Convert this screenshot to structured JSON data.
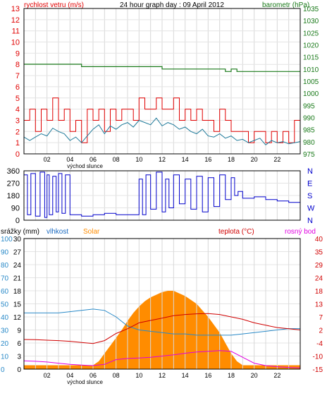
{
  "header": {
    "left_label": "rychlost vetru (m/s)",
    "title": "24 hour graph day : 09 April 2012",
    "right_label": "barometr (hPa)"
  },
  "colors": {
    "wind": "#e00000",
    "gust_avg": "#1f7a9a",
    "pressure": "#1a7a1a",
    "direction": "#0000cc",
    "solar": "#ff8c00",
    "humidity": "#2a8ac8",
    "temperature": "#d00000",
    "dewpoint": "#e000e0",
    "rain_axis": "#1a6ac0"
  },
  "chart_data": [
    {
      "type": "line",
      "name": "wind-and-pressure",
      "x_ticks": [
        "02",
        "04",
        "06",
        "08",
        "10",
        "12",
        "14",
        "16",
        "18",
        "20",
        "22"
      ],
      "x_annotation": "východ slunce",
      "ylim": [
        0,
        13
      ],
      "y_ticks": [
        0,
        1,
        2,
        3,
        4,
        5,
        6,
        7,
        8,
        9,
        10,
        11,
        12,
        13
      ],
      "y2lim": [
        975,
        1035
      ],
      "y2_ticks": [
        975,
        980,
        985,
        990,
        995,
        1000,
        1005,
        1010,
        1015,
        1020,
        1025,
        1030,
        1035
      ],
      "series": [
        {
          "key": "wind",
          "axis": "left",
          "x": [
            0,
            0.5,
            1,
            1.5,
            2,
            2.5,
            3,
            3.5,
            4,
            4.5,
            5,
            5.5,
            6,
            6.5,
            7,
            7.5,
            8,
            8.5,
            9,
            9.5,
            10,
            10.5,
            11,
            11.5,
            12,
            12.5,
            13,
            13.5,
            14,
            14.5,
            15,
            15.5,
            16,
            16.5,
            17,
            17.5,
            18,
            18.5,
            19,
            19.5,
            20,
            20.5,
            21,
            21.5,
            22,
            22.5,
            23,
            23.5,
            24
          ],
          "values": [
            3,
            4,
            2,
            4,
            3,
            5,
            3,
            4,
            2,
            3,
            1,
            4,
            3,
            4,
            2,
            4,
            3,
            4,
            4,
            3,
            5,
            4,
            4,
            5,
            4,
            4,
            5,
            3,
            4,
            3,
            4,
            3,
            3,
            2,
            4,
            3,
            2,
            2,
            2,
            1,
            2,
            2,
            1,
            2,
            1,
            2,
            1,
            3,
            2
          ]
        },
        {
          "key": "gust_avg",
          "axis": "left",
          "x": [
            0,
            0.5,
            1,
            1.5,
            2,
            2.5,
            3,
            3.5,
            4,
            4.5,
            5,
            5.5,
            6,
            6.5,
            7,
            7.5,
            8,
            8.5,
            9,
            9.5,
            10,
            10.5,
            11,
            11.5,
            12,
            12.5,
            13,
            13.5,
            14,
            14.5,
            15,
            15.5,
            16,
            16.5,
            17,
            17.5,
            18,
            18.5,
            19,
            19.5,
            20,
            20.5,
            21,
            21.5,
            22,
            22.5,
            23,
            23.5,
            24
          ],
          "values": [
            1.5,
            1.2,
            1.5,
            1.8,
            1.6,
            2.3,
            2.0,
            1.8,
            1.2,
            1.5,
            1.0,
            1.6,
            2.2,
            2.6,
            1.8,
            2.5,
            2.2,
            2.6,
            2.8,
            2.4,
            3.0,
            2.8,
            2.6,
            3.2,
            2.5,
            2.8,
            2.6,
            2.2,
            2.4,
            2.0,
            1.8,
            2.2,
            1.6,
            1.5,
            1.8,
            1.4,
            1.6,
            1.2,
            1.3,
            1.0,
            1.2,
            1.4,
            0.8,
            1.2,
            1.0,
            1.1,
            0.9,
            1.0,
            1.1
          ]
        },
        {
          "key": "pressure",
          "axis": "right",
          "x": [
            0,
            1,
            2,
            3,
            4,
            5,
            6,
            7,
            8,
            9,
            10,
            11,
            12,
            13,
            14,
            15,
            16,
            17,
            17.5,
            18,
            18.5,
            19,
            20,
            21,
            22,
            23,
            24
          ],
          "values": [
            1012,
            1012,
            1012,
            1012,
            1012,
            1011,
            1011,
            1011,
            1011,
            1011,
            1011,
            1011,
            1010,
            1010,
            1010,
            1010,
            1010,
            1010,
            1009,
            1010,
            1009,
            1009,
            1009,
            1009,
            1009,
            1009,
            1009
          ]
        }
      ]
    },
    {
      "type": "line",
      "name": "wind-direction",
      "x_ticks": [
        "02",
        "04",
        "06",
        "08",
        "10",
        "12",
        "14",
        "16",
        "18",
        "20",
        "22"
      ],
      "ylim": [
        0,
        360
      ],
      "y_ticks": [
        0,
        90,
        180,
        270,
        360
      ],
      "y_tick_labels": [
        "0",
        "90",
        "180",
        "270",
        "360"
      ],
      "right_labels": [
        "N",
        "W",
        "S",
        "E",
        "N"
      ],
      "series": [
        {
          "key": "direction",
          "x": [
            0,
            0.3,
            0.6,
            1.0,
            1.4,
            1.8,
            2.0,
            2.2,
            2.5,
            2.8,
            3.0,
            3.3,
            3.6,
            4.0,
            4.5,
            5.0,
            6.0,
            7.0,
            8.0,
            9.0,
            10.0,
            10.3,
            10.6,
            11.0,
            11.5,
            12.0,
            12.3,
            12.6,
            13.0,
            13.5,
            14.0,
            14.5,
            15.0,
            15.5,
            16.0,
            16.5,
            17.0,
            17.5,
            18.0,
            18.3,
            18.6,
            19.0,
            20.0,
            21.0,
            22.0,
            23.0,
            24.0
          ],
          "values": [
            330,
            40,
            340,
            30,
            350,
            20,
            330,
            40,
            320,
            60,
            340,
            50,
            330,
            40,
            40,
            30,
            40,
            50,
            40,
            40,
            300,
            40,
            330,
            80,
            350,
            60,
            300,
            90,
            330,
            120,
            300,
            80,
            320,
            60,
            310,
            100,
            330,
            150,
            310,
            180,
            210,
            160,
            170,
            150,
            140,
            130,
            120
          ]
        }
      ]
    },
    {
      "type": "area",
      "name": "weather-multi",
      "x_ticks": [
        "02",
        "04",
        "06",
        "08",
        "10",
        "12",
        "14",
        "16",
        "18",
        "20",
        "22"
      ],
      "x_annotation": "východ slunce",
      "legend": {
        "rain": "srážky (mm)",
        "humidity": "vlhkost",
        "solar": "Solar",
        "temperature": "teplota (°C)",
        "dewpoint": "rosný bod"
      },
      "rain_axis": {
        "ylim": [
          0,
          30
        ],
        "ticks": [
          0,
          3,
          6,
          9,
          12,
          15,
          18,
          21,
          24,
          27,
          30
        ]
      },
      "humidity_axis": {
        "ylim": [
          0,
          100
        ],
        "ticks": [
          0,
          10,
          20,
          30,
          40,
          50,
          60,
          70,
          80,
          90,
          100
        ]
      },
      "temp_axis": {
        "ylim": [
          -15,
          40
        ],
        "ticks": [
          -15,
          -10,
          -4,
          2,
          7,
          13,
          18,
          24,
          29,
          35,
          40
        ]
      },
      "series": [
        {
          "key": "solar",
          "axis": "humidity",
          "x": [
            0,
            1,
            2,
            3,
            4,
            5,
            6,
            6.5,
            7,
            7.5,
            8,
            8.5,
            9,
            9.5,
            10,
            10.5,
            11,
            11.5,
            12,
            12.5,
            13,
            13.5,
            14,
            14.5,
            15,
            15.5,
            16,
            16.5,
            17,
            17.5,
            18,
            18.5,
            19,
            20,
            21,
            22,
            23,
            24
          ],
          "values": [
            3,
            3,
            3,
            3,
            3,
            3,
            3,
            6,
            12,
            18,
            24,
            30,
            37,
            43,
            48,
            52,
            55,
            57,
            59,
            60,
            60,
            58,
            56,
            53,
            50,
            45,
            40,
            34,
            28,
            20,
            12,
            6,
            3,
            3,
            3,
            3,
            3,
            3
          ]
        },
        {
          "key": "humidity",
          "axis": "humidity",
          "x": [
            0,
            1,
            2,
            3,
            4,
            5,
            6,
            7,
            8,
            9,
            10,
            11,
            12,
            13,
            14,
            15,
            16,
            17,
            18,
            19,
            20,
            21,
            22,
            23,
            24
          ],
          "values": [
            43,
            43,
            43,
            43,
            44,
            45,
            46,
            45,
            40,
            33,
            30,
            29,
            28,
            27,
            27,
            26,
            26,
            26,
            26,
            27,
            28,
            29,
            30,
            31,
            31
          ]
        },
        {
          "key": "temperature",
          "axis": "temp",
          "x": [
            0,
            1,
            2,
            3,
            4,
            5,
            6,
            7,
            8,
            9,
            10,
            11,
            12,
            13,
            14,
            15,
            16,
            17,
            18,
            19,
            20,
            21,
            22,
            23,
            24
          ],
          "values": [
            -2.5,
            -2.6,
            -2.8,
            -3.0,
            -3.3,
            -3.8,
            -4.2,
            -3.0,
            0.0,
            2.0,
            4.5,
            5.5,
            6.5,
            7.5,
            8.0,
            8.3,
            8.4,
            8.0,
            7.0,
            6.0,
            4.5,
            3.5,
            2.5,
            2.0,
            1.5
          ]
        },
        {
          "key": "dewpoint",
          "axis": "temp",
          "x": [
            0,
            1,
            2,
            3,
            4,
            5,
            6,
            7,
            8,
            9,
            10,
            11,
            12,
            13,
            14,
            15,
            16,
            17,
            18,
            19,
            20,
            21,
            22,
            23,
            24
          ],
          "values": [
            -11.5,
            -11.7,
            -12.0,
            -12.5,
            -13.0,
            -13.3,
            -13.5,
            -13.0,
            -11.0,
            -10.5,
            -10.3,
            -10.0,
            -9.5,
            -9.0,
            -8.3,
            -7.8,
            -7.5,
            -7.2,
            -7.5,
            -10.0,
            -12.5,
            -13.5,
            -14.0,
            -14.3,
            -14.5
          ]
        }
      ]
    }
  ]
}
